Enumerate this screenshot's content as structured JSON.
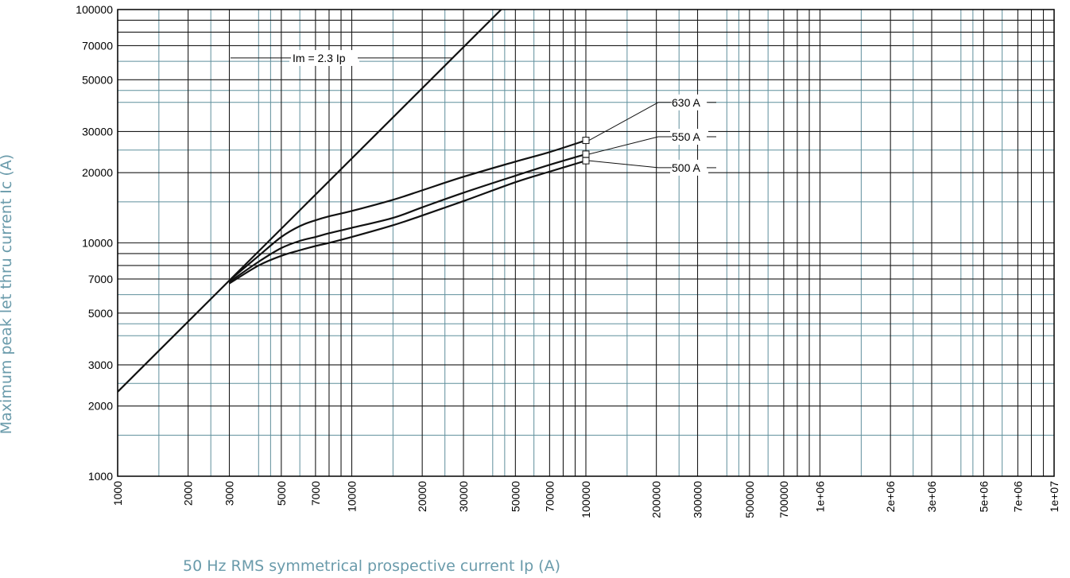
{
  "chart_data": {
    "type": "line",
    "title": "",
    "xlabel": "50 Hz RMS symmetrical prospective current Ip (A)",
    "ylabel": "Maximum peak let thru current Ic (A)",
    "x_scale": "log",
    "y_scale": "log",
    "xlim": [
      1000,
      10000000
    ],
    "ylim": [
      1000,
      100000
    ],
    "grid": true,
    "x_ticks": [
      1000,
      2000,
      3000,
      5000,
      7000,
      10000,
      20000,
      30000,
      50000,
      70000,
      100000,
      200000,
      300000,
      500000,
      700000,
      1000000,
      2000000,
      3000000,
      5000000,
      7000000,
      10000000
    ],
    "x_tick_labels": [
      "1000",
      "2000",
      "3000",
      "5000",
      "7000",
      "10000",
      "20000",
      "30000",
      "50000",
      "70000",
      "100000",
      "200000",
      "300000",
      "500000",
      "700000",
      "1e+06",
      "2e+06",
      "3e+06",
      "5e+06",
      "7e+06",
      "1e+07"
    ],
    "y_ticks": [
      1000,
      2000,
      3000,
      5000,
      7000,
      10000,
      20000,
      30000,
      50000,
      70000,
      100000
    ],
    "y_tick_labels": [
      "1000",
      "2000",
      "3000",
      "5000",
      "7000",
      "10000",
      "20000",
      "30000",
      "50000",
      "70000",
      "100000"
    ],
    "series": [
      {
        "name": "Im = 2.3 Ip",
        "x": [
          1000,
          43480
        ],
        "y": [
          2300,
          100000
        ]
      },
      {
        "name": "630 A",
        "x": [
          3000,
          4000,
          5000,
          6000,
          7000,
          8000,
          10000,
          15000,
          20000,
          30000,
          50000,
          70000,
          100000
        ],
        "y": [
          6900,
          8800,
          10600,
          11800,
          12500,
          13000,
          13700,
          15300,
          16800,
          19200,
          22300,
          24500,
          27500
        ]
      },
      {
        "name": "550 A",
        "x": [
          3000,
          4000,
          5000,
          6000,
          7000,
          8000,
          10000,
          15000,
          20000,
          30000,
          50000,
          70000,
          100000
        ],
        "y": [
          6800,
          8300,
          9500,
          10200,
          10600,
          11000,
          11600,
          12800,
          14200,
          16400,
          19400,
          21600,
          24000
        ]
      },
      {
        "name": "500 A",
        "x": [
          3000,
          4000,
          5000,
          6000,
          7000,
          8000,
          10000,
          15000,
          20000,
          30000,
          50000,
          70000,
          100000
        ],
        "y": [
          6700,
          8000,
          8800,
          9300,
          9700,
          10000,
          10600,
          11900,
          13100,
          15100,
          18200,
          20200,
          22500
        ]
      }
    ]
  }
}
